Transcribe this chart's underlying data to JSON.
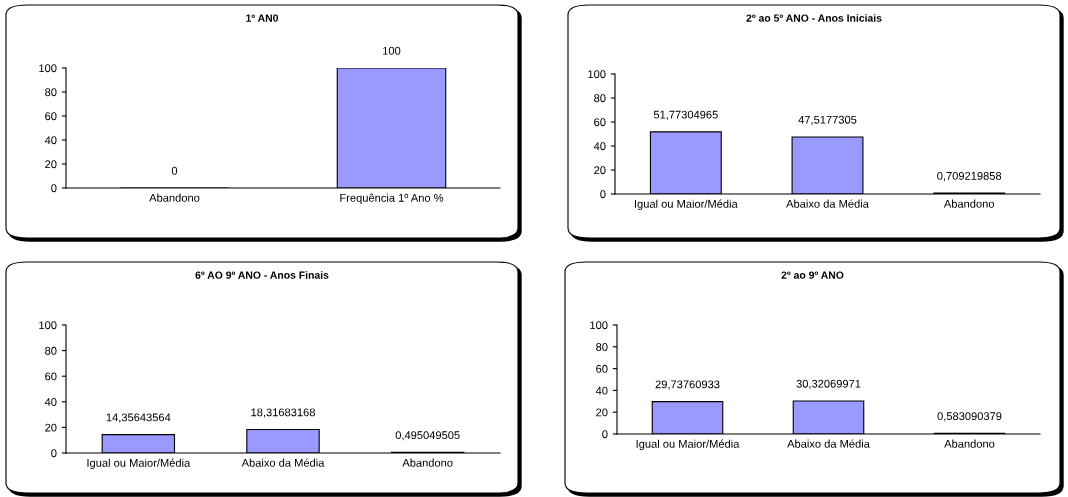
{
  "chart_data": [
    {
      "type": "bar",
      "title": "1º AN0",
      "categories": [
        "Abandono",
        "Frequência 1º Ano %"
      ],
      "values": [
        0,
        100
      ],
      "value_labels": [
        "0",
        "100"
      ],
      "color": "#9999ff",
      "ylim": [
        0,
        100
      ],
      "yticks": [
        0,
        20,
        40,
        60,
        80,
        100
      ],
      "grid": false,
      "legend": false
    },
    {
      "type": "bar",
      "title": "2º ao 5º ANO - Anos Iniciais",
      "categories": [
        "Igual ou Maior/Média",
        "Abaixo da Média",
        "Abandono"
      ],
      "values": [
        51.77304965,
        47.5177305,
        0.709219858
      ],
      "value_labels": [
        "51,77304965",
        "47,5177305",
        "0,709219858"
      ],
      "color": "#9999ff",
      "ylim": [
        0,
        100
      ],
      "yticks": [
        0,
        20,
        40,
        60,
        80,
        100
      ],
      "grid": false,
      "legend": false
    },
    {
      "type": "bar",
      "title": "6º AO 9º ANO - Anos Finais",
      "categories": [
        "Igual ou Maior/Média",
        "Abaixo da Média",
        "Abandono"
      ],
      "values": [
        14.35643564,
        18.31683168,
        0.495049505
      ],
      "value_labels": [
        "14,35643564",
        "18,31683168",
        "0,495049505"
      ],
      "color": "#9999ff",
      "ylim": [
        0,
        100
      ],
      "yticks": [
        0,
        20,
        40,
        60,
        80,
        100
      ],
      "grid": false,
      "legend": false
    },
    {
      "type": "bar",
      "title": "2º ao 9º ANO",
      "categories": [
        "Igual ou Maior/Média",
        "Abaixo da Média",
        "Abandono"
      ],
      "values": [
        29.73760933,
        30.32069971,
        0.583090379
      ],
      "value_labels": [
        "29,73760933",
        "30,32069971",
        "0,583090379"
      ],
      "color": "#9999ff",
      "ylim": [
        0,
        100
      ],
      "yticks": [
        0,
        20,
        40,
        60,
        80,
        100
      ],
      "grid": false,
      "legend": false
    }
  ]
}
